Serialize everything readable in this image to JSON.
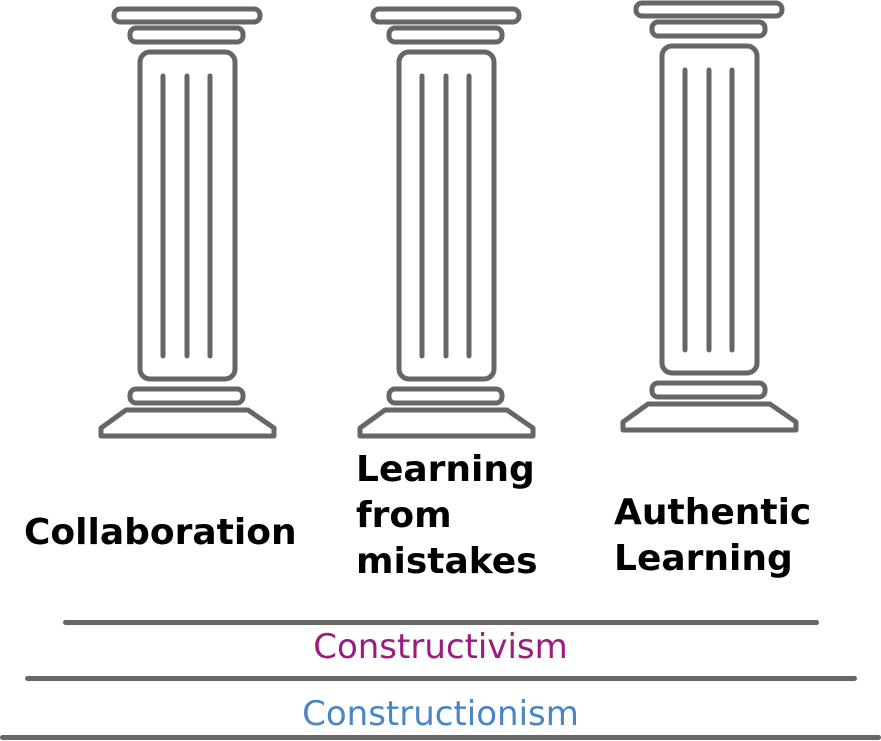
{
  "pillars": [
    {
      "label_lines": [
        "Collaboration"
      ]
    },
    {
      "label_lines": [
        "Learning",
        "from",
        "mistakes"
      ]
    },
    {
      "label_lines": [
        "Authentic",
        "Learning"
      ]
    }
  ],
  "foundations": [
    {
      "text": "Constructivism",
      "color": "#9b1b7e"
    },
    {
      "text": "Constructionism",
      "color": "#4a86c5"
    }
  ],
  "colors": {
    "outline": "#666666"
  }
}
